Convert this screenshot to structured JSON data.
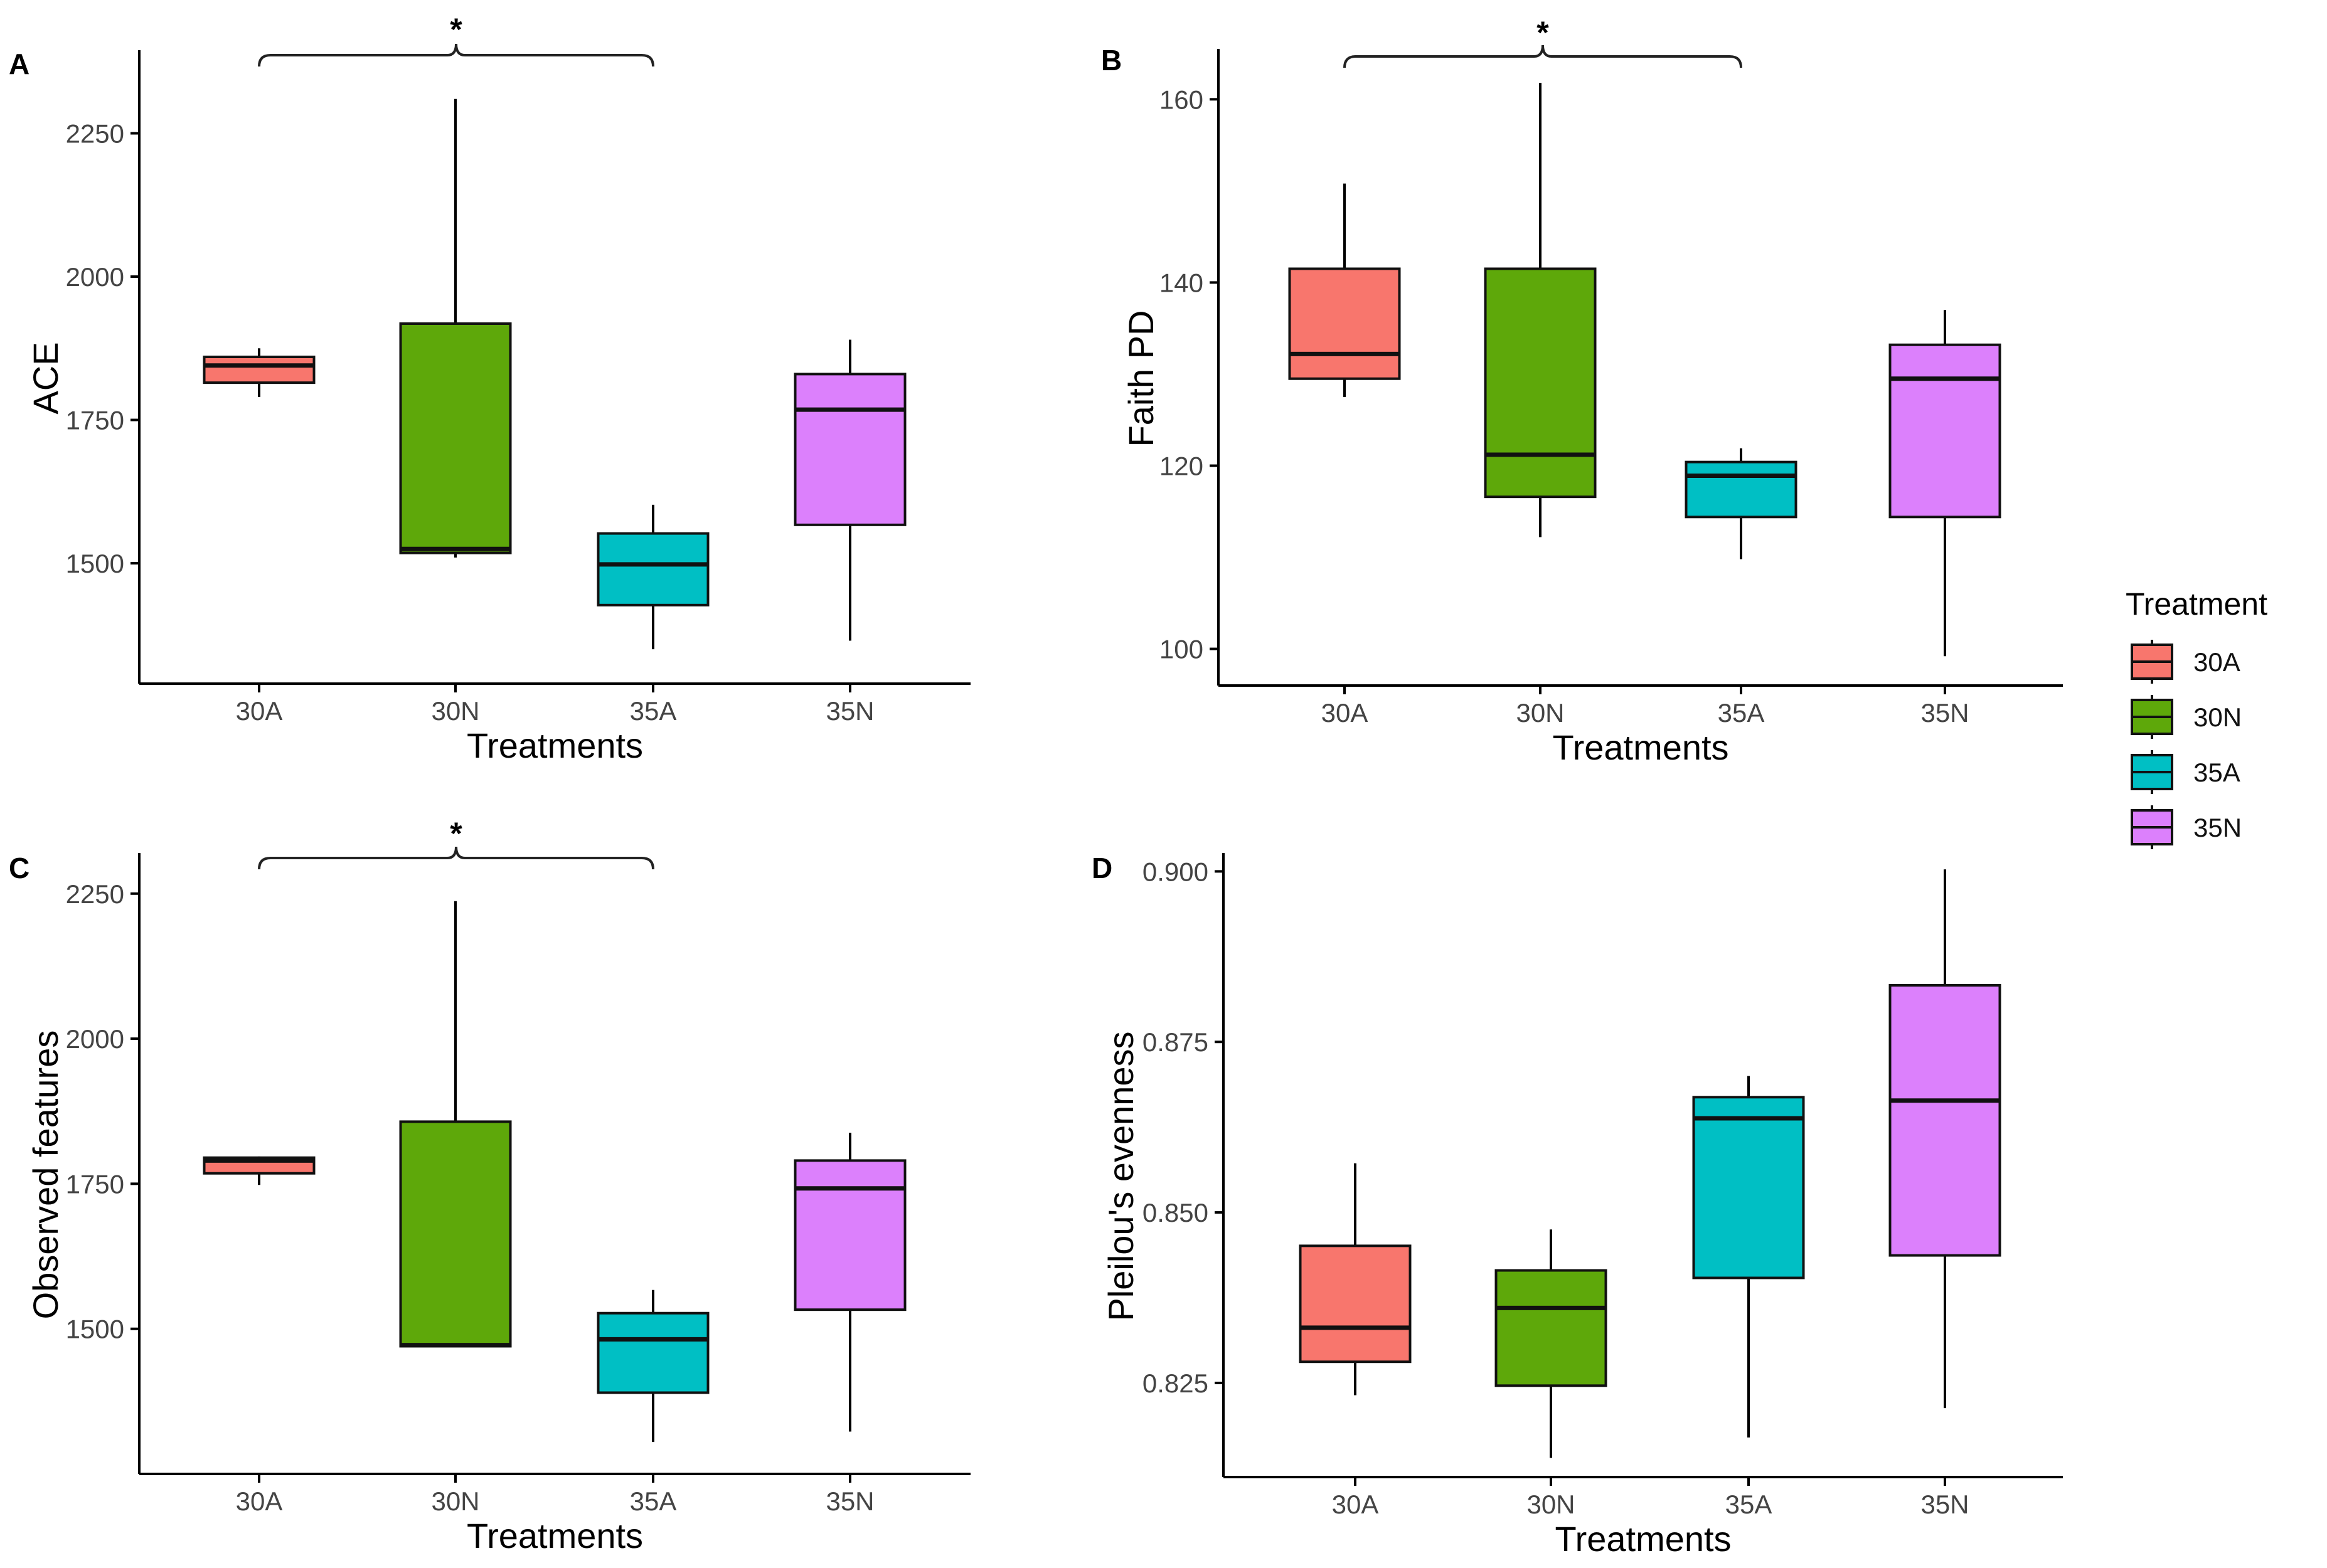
{
  "legend": {
    "title": "Treatment",
    "items": [
      {
        "label": "30A",
        "color": "#F8766D"
      },
      {
        "label": "30N",
        "color": "#5EA80A"
      },
      {
        "label": "35A",
        "color": "#00BFC4"
      },
      {
        "label": "35N",
        "color": "#DC80FC"
      }
    ]
  },
  "chart_data": [
    {
      "panel": "A",
      "type": "boxplot",
      "xlabel": "Treatments",
      "ylabel": "ACE",
      "categories": [
        "30A",
        "30N",
        "35A",
        "35N"
      ],
      "yticks": [
        1500,
        1750,
        2000,
        2250
      ],
      "ylim": [
        1290,
        2395
      ],
      "boxes": [
        {
          "min": 1790,
          "q1": 1815,
          "median": 1845,
          "q3": 1860,
          "max": 1875
        },
        {
          "min": 1510,
          "q1": 1518,
          "median": 1525,
          "q3": 1918,
          "max": 2310
        },
        {
          "min": 1350,
          "q1": 1427,
          "median": 1498,
          "q3": 1552,
          "max": 1602
        },
        {
          "min": 1365,
          "q1": 1567,
          "median": 1768,
          "q3": 1830,
          "max": 1890
        }
      ],
      "significance": {
        "from": "30A",
        "to": "35A",
        "label": "*"
      }
    },
    {
      "panel": "B",
      "type": "boxplot",
      "xlabel": "Treatments",
      "ylabel": "Faith PD",
      "categories": [
        "30A",
        "30N",
        "35A",
        "35N"
      ],
      "yticks": [
        100,
        120,
        140,
        160
      ],
      "ylim": [
        96,
        165.5
      ],
      "boxes": [
        {
          "min": 127.5,
          "q1": 129.5,
          "median": 132.2,
          "q3": 141.5,
          "max": 150.8
        },
        {
          "min": 112.2,
          "q1": 116.6,
          "median": 121.2,
          "q3": 141.5,
          "max": 161.8
        },
        {
          "min": 109.8,
          "q1": 114.4,
          "median": 118.9,
          "q3": 120.4,
          "max": 121.9
        },
        {
          "min": 99.2,
          "q1": 114.4,
          "median": 129.5,
          "q3": 133.2,
          "max": 137.0
        }
      ],
      "significance": {
        "from": "30A",
        "to": "35A",
        "label": "*"
      }
    },
    {
      "panel": "C",
      "type": "boxplot",
      "xlabel": "Treatments",
      "ylabel": "Observed features",
      "categories": [
        "30A",
        "30N",
        "35A",
        "35N"
      ],
      "yticks": [
        1500,
        1750,
        2000,
        2250
      ],
      "ylim": [
        1250,
        2320
      ],
      "boxes": [
        {
          "min": 1748,
          "q1": 1768,
          "median": 1790,
          "q3": 1795,
          "max": 1797
        },
        {
          "min": 1470,
          "q1": 1470,
          "median": 1472,
          "q3": 1857,
          "max": 2237
        },
        {
          "min": 1305,
          "q1": 1390,
          "median": 1482,
          "q3": 1527,
          "max": 1567
        },
        {
          "min": 1323,
          "q1": 1533,
          "median": 1742,
          "q3": 1790,
          "max": 1838
        }
      ],
      "significance": {
        "from": "30A",
        "to": "35A",
        "label": "*"
      }
    },
    {
      "panel": "D",
      "type": "boxplot",
      "xlabel": "Treatments",
      "ylabel": "Pleilou's evenness",
      "categories": [
        "30A",
        "30N",
        "35A",
        "35N"
      ],
      "yticks": [
        "0.825",
        "0.850",
        "0.875",
        "0.900"
      ],
      "ylim": [
        0.8112,
        0.9027
      ],
      "boxes": [
        {
          "min": 0.8232,
          "q1": 0.8281,
          "median": 0.8331,
          "q3": 0.8451,
          "max": 0.8572
        },
        {
          "min": 0.814,
          "q1": 0.8246,
          "median": 0.836,
          "q3": 0.8415,
          "max": 0.8475
        },
        {
          "min": 0.817,
          "q1": 0.8404,
          "median": 0.8638,
          "q3": 0.8669,
          "max": 0.87
        },
        {
          "min": 0.8213,
          "q1": 0.8437,
          "median": 0.8664,
          "q3": 0.8833,
          "max": 0.9003
        }
      ]
    }
  ]
}
